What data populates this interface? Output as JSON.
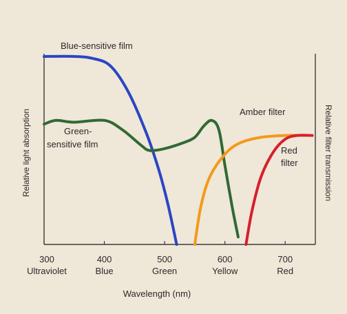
{
  "chart_data": {
    "type": "line",
    "title": "",
    "xlabel": "Wavelength (nm)",
    "ylabel_left": "Relative light absorption",
    "ylabel_right": "Relative filter transmission",
    "xlim": [
      300,
      750
    ],
    "ylim": [
      0,
      1
    ],
    "x_ticks": [
      {
        "value": 300,
        "label": "300",
        "sublabel": "Ultraviolet"
      },
      {
        "value": 400,
        "label": "400",
        "sublabel": "Blue"
      },
      {
        "value": 500,
        "label": "500",
        "sublabel": "Green"
      },
      {
        "value": 600,
        "label": "600",
        "sublabel": "Yellow"
      },
      {
        "value": 700,
        "label": "700",
        "sublabel": "Red"
      }
    ],
    "grid": false,
    "series": [
      {
        "name": "Blue-sensitive film",
        "color": "#2a46c4",
        "points": [
          [
            300,
            1.0
          ],
          [
            350,
            1.0
          ],
          [
            380,
            0.99
          ],
          [
            410,
            0.95
          ],
          [
            440,
            0.81
          ],
          [
            470,
            0.59
          ],
          [
            490,
            0.4
          ],
          [
            505,
            0.22
          ],
          [
            520,
            0.0
          ]
        ]
      },
      {
        "name": "Green-sensitive film",
        "color": "#2f6a32",
        "points": [
          [
            300,
            0.64
          ],
          [
            320,
            0.66
          ],
          [
            350,
            0.65
          ],
          [
            400,
            0.66
          ],
          [
            430,
            0.61
          ],
          [
            460,
            0.53
          ],
          [
            475,
            0.5
          ],
          [
            500,
            0.51
          ],
          [
            530,
            0.54
          ],
          [
            550,
            0.57
          ],
          [
            565,
            0.63
          ],
          [
            578,
            0.66
          ],
          [
            590,
            0.61
          ],
          [
            600,
            0.42
          ],
          [
            612,
            0.2
          ],
          [
            622,
            0.04
          ]
        ]
      },
      {
        "name": "Amber filter",
        "color": "#f39a1a",
        "points": [
          [
            550,
            0.0
          ],
          [
            560,
            0.2
          ],
          [
            575,
            0.36
          ],
          [
            600,
            0.48
          ],
          [
            625,
            0.54
          ],
          [
            660,
            0.57
          ],
          [
            700,
            0.58
          ],
          [
            740,
            0.58
          ]
        ]
      },
      {
        "name": "Red filter",
        "color": "#d61f2c",
        "points": [
          [
            635,
            0.0
          ],
          [
            645,
            0.18
          ],
          [
            660,
            0.36
          ],
          [
            680,
            0.49
          ],
          [
            700,
            0.56
          ],
          [
            720,
            0.58
          ],
          [
            745,
            0.58
          ]
        ]
      }
    ]
  }
}
